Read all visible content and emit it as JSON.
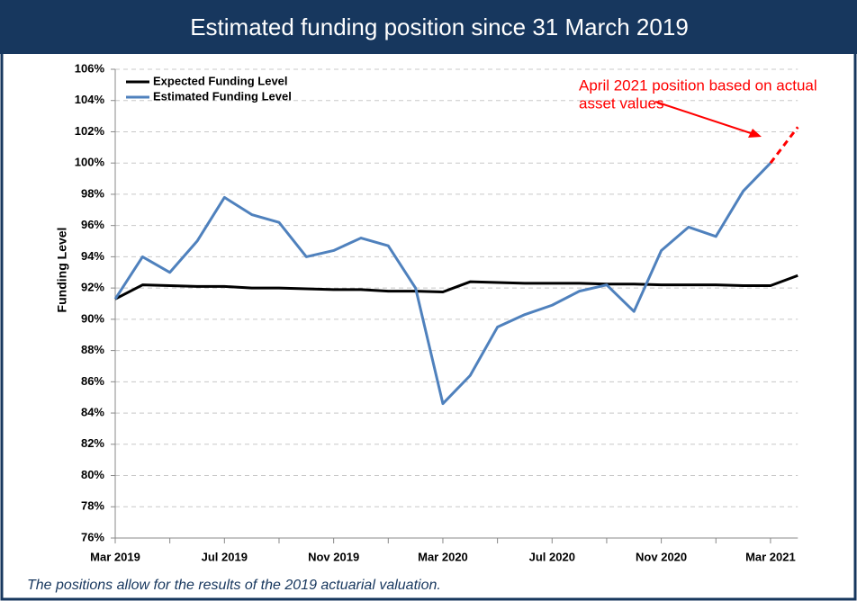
{
  "chart_data": {
    "type": "line",
    "title": "Estimated funding position since 31 March 2019",
    "ylabel": "Funding Level",
    "footnote": "The positions allow for the results of the 2019 actuarial valuation.",
    "categories": [
      "Mar 2019",
      null,
      null,
      null,
      "Jul 2019",
      null,
      null,
      null,
      "Nov 2019",
      null,
      null,
      null,
      "Mar 2020",
      null,
      null,
      null,
      "Jul 2020",
      null,
      null,
      null,
      "Nov 2020",
      null,
      null,
      null,
      "Mar 2021",
      null
    ],
    "series": [
      {
        "name": "Expected Funding Level",
        "color": "#000000",
        "values": [
          91.3,
          92.2,
          92.15,
          92.1,
          92.1,
          92.0,
          92.0,
          91.95,
          91.9,
          91.9,
          91.8,
          91.8,
          91.75,
          92.4,
          92.35,
          92.3,
          92.3,
          92.3,
          92.25,
          92.25,
          92.2,
          92.2,
          92.2,
          92.15,
          92.15,
          92.8
        ]
      },
      {
        "name": "Estimated Funding Level",
        "color": "#4f81bd",
        "values": [
          91.3,
          94.0,
          93.0,
          95.0,
          97.8,
          96.7,
          96.2,
          94.0,
          94.4,
          95.2,
          94.7,
          92.0,
          84.6,
          86.4,
          89.5,
          90.3,
          90.9,
          91.8,
          92.2,
          90.5,
          94.4,
          95.9,
          95.3,
          98.2,
          100.0,
          null
        ]
      },
      {
        "color": "#ff0000",
        "dashed": true,
        "values": [
          null,
          null,
          null,
          null,
          null,
          null,
          null,
          null,
          null,
          null,
          null,
          null,
          null,
          null,
          null,
          null,
          null,
          null,
          null,
          null,
          null,
          null,
          null,
          null,
          100.0,
          102.3
        ]
      }
    ],
    "annotation": {
      "text": [
        "April 2021 position based on actual",
        "asset values"
      ],
      "color": "#ff0000"
    },
    "ylim": [
      76,
      106
    ],
    "yticks": [
      {
        "value": 76,
        "label": "76%"
      },
      {
        "value": 78,
        "label": "78%"
      },
      {
        "value": 80,
        "label": "80%"
      },
      {
        "value": 82,
        "label": "82%"
      },
      {
        "value": 84,
        "label": "84%"
      },
      {
        "value": 86,
        "label": "86%"
      },
      {
        "value": 88,
        "label": "88%"
      },
      {
        "value": 90,
        "label": "90%"
      },
      {
        "value": 92,
        "label": "92%"
      },
      {
        "value": 94,
        "label": "94%"
      },
      {
        "value": 96,
        "label": "96%"
      },
      {
        "value": 98,
        "label": "98%"
      },
      {
        "value": 100,
        "label": "100%"
      },
      {
        "value": 102,
        "label": "102%"
      },
      {
        "value": 104,
        "label": "104%"
      },
      {
        "value": 106,
        "label": "106%"
      }
    ],
    "grid": true,
    "legend": "upper left"
  }
}
